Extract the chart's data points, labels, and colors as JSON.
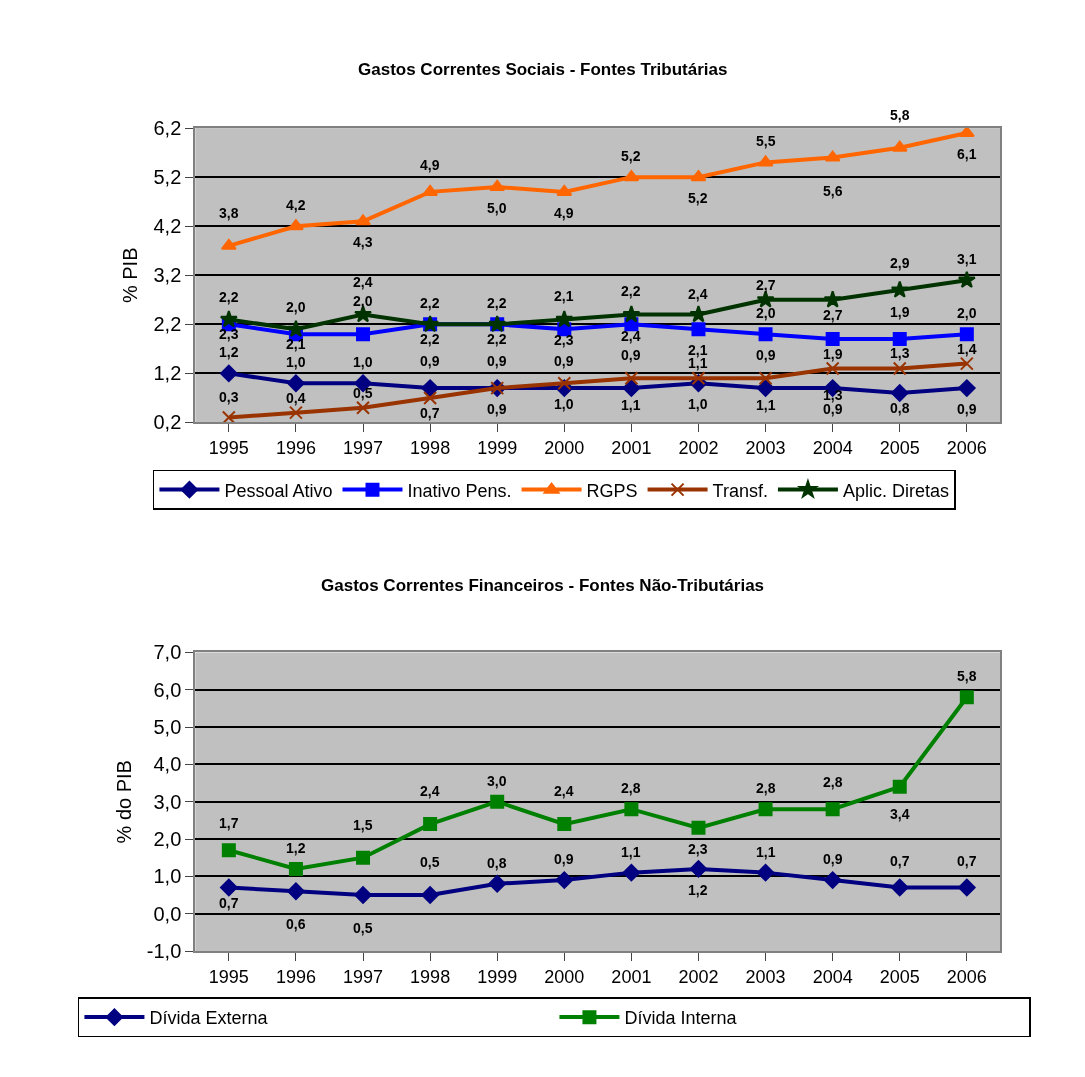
{
  "chart_data": [
    {
      "type": "line",
      "title": "Gastos Correntes Sociais - Fontes Tributárias",
      "ylabel": "% PIB",
      "categories": [
        "1995",
        "1996",
        "1997",
        "1998",
        "1999",
        "2000",
        "2001",
        "2002",
        "2003",
        "2004",
        "2005",
        "2006"
      ],
      "ylim": [
        0.2,
        6.2
      ],
      "yticks": [
        {
          "value": 0.2,
          "label": "0,2"
        },
        {
          "value": 1.2,
          "label": "1,2"
        },
        {
          "value": 2.2,
          "label": "2,2"
        },
        {
          "value": 3.2,
          "label": "3,2"
        },
        {
          "value": 4.2,
          "label": "4,2"
        },
        {
          "value": 5.2,
          "label": "5,2"
        },
        {
          "value": 6.2,
          "label": "6,2"
        }
      ],
      "grid": "y",
      "legend": "bottom",
      "series": [
        {
          "name": "Pessoal Ativo",
          "color": "#000080",
          "marker": "diamond",
          "values": [
            1.2,
            1.0,
            1.0,
            0.9,
            0.9,
            0.9,
            0.9,
            1.0,
            0.9,
            0.9,
            0.8,
            0.9
          ],
          "value_labels": [
            "1,2",
            "1,0",
            "1,0",
            "0,9",
            "0,9",
            "0,9",
            "0,9",
            "1,0",
            "0,9",
            "0,9",
            "0,8",
            "0,9"
          ]
        },
        {
          "name": "Inativo Pens.",
          "color": "#0000ff",
          "marker": "square",
          "values": [
            2.2,
            2.0,
            2.0,
            2.2,
            2.2,
            2.1,
            2.2,
            2.1,
            2.0,
            1.9,
            1.9,
            2.0
          ],
          "value_labels": [
            "2,2",
            "2,0",
            "2,0",
            "2,2",
            "2,2",
            "2,1",
            "2,2",
            "2,1",
            "2,0",
            "1,9",
            "1,9",
            "2,0"
          ]
        },
        {
          "name": "RGPS",
          "color": "#ff6600",
          "marker": "triangle",
          "values": [
            3.8,
            4.2,
            4.3,
            4.9,
            5.0,
            4.9,
            5.2,
            5.2,
            5.5,
            5.6,
            5.8,
            6.1
          ],
          "value_labels": [
            "3,8",
            "4,2",
            "4,3",
            "4,9",
            "5,0",
            "4,9",
            "5,2",
            "5,2",
            "5,5",
            "5,6",
            "5,8",
            "6,1"
          ]
        },
        {
          "name": "Transf.",
          "color": "#993300",
          "marker": "cross",
          "values": [
            0.3,
            0.4,
            0.5,
            0.7,
            0.9,
            1.0,
            1.1,
            1.1,
            1.1,
            1.3,
            1.3,
            1.4
          ],
          "value_labels": [
            "0,3",
            "0,4",
            "0,5",
            "0,7",
            "0,9",
            "1,0",
            "1,1",
            "1,1",
            "1,1",
            "1,3",
            "1,3",
            "1,4"
          ]
        },
        {
          "name": "Aplic. Diretas",
          "color": "#003300",
          "marker": "star",
          "values": [
            2.3,
            2.1,
            2.4,
            2.2,
            2.2,
            2.3,
            2.4,
            2.4,
            2.7,
            2.7,
            2.9,
            3.1
          ],
          "value_labels": [
            "2,3",
            "2,1",
            "2,4",
            "2,2",
            "2,2",
            "2,3",
            "2,4",
            "2,4",
            "2,7",
            "2,7",
            "2,9",
            "3,1"
          ]
        }
      ]
    },
    {
      "type": "line",
      "title": "Gastos Correntes Financeiros - Fontes Não-Tributárias",
      "ylabel": "% do PIB",
      "categories": [
        "1995",
        "1996",
        "1997",
        "1998",
        "1999",
        "2000",
        "2001",
        "2002",
        "2003",
        "2004",
        "2005",
        "2006"
      ],
      "ylim": [
        -1.0,
        7.0
      ],
      "yticks": [
        {
          "value": -1.0,
          "label": "-1,0"
        },
        {
          "value": 0.0,
          "label": "0,0"
        },
        {
          "value": 1.0,
          "label": "1,0"
        },
        {
          "value": 2.0,
          "label": "2,0"
        },
        {
          "value": 3.0,
          "label": "3,0"
        },
        {
          "value": 4.0,
          "label": "4,0"
        },
        {
          "value": 5.0,
          "label": "5,0"
        },
        {
          "value": 6.0,
          "label": "6,0"
        },
        {
          "value": 7.0,
          "label": "7,0"
        }
      ],
      "grid": "y",
      "legend": "bottom",
      "series": [
        {
          "name": "Dívida Externa",
          "color": "#000080",
          "marker": "diamond",
          "values": [
            0.7,
            0.6,
            0.5,
            0.5,
            0.8,
            0.9,
            1.1,
            1.2,
            1.1,
            0.9,
            0.7,
            0.7
          ],
          "value_labels": [
            "0,7",
            "0,6",
            "0,5",
            "0,5",
            "0,8",
            "0,9",
            "1,1",
            "1,2",
            "1,1",
            "0,9",
            "0,7",
            "0,7"
          ]
        },
        {
          "name": "Dívida Interna",
          "color": "#008000",
          "marker": "square",
          "values": [
            1.7,
            1.2,
            1.5,
            2.4,
            3.0,
            2.4,
            2.8,
            2.3,
            2.8,
            2.8,
            3.4,
            5.8
          ],
          "value_labels": [
            "1,7",
            "1,2",
            "1,5",
            "2,4",
            "3,0",
            "2,4",
            "2,8",
            "2,3",
            "2,8",
            "2,8",
            "3,4",
            "5,8"
          ]
        }
      ]
    }
  ]
}
